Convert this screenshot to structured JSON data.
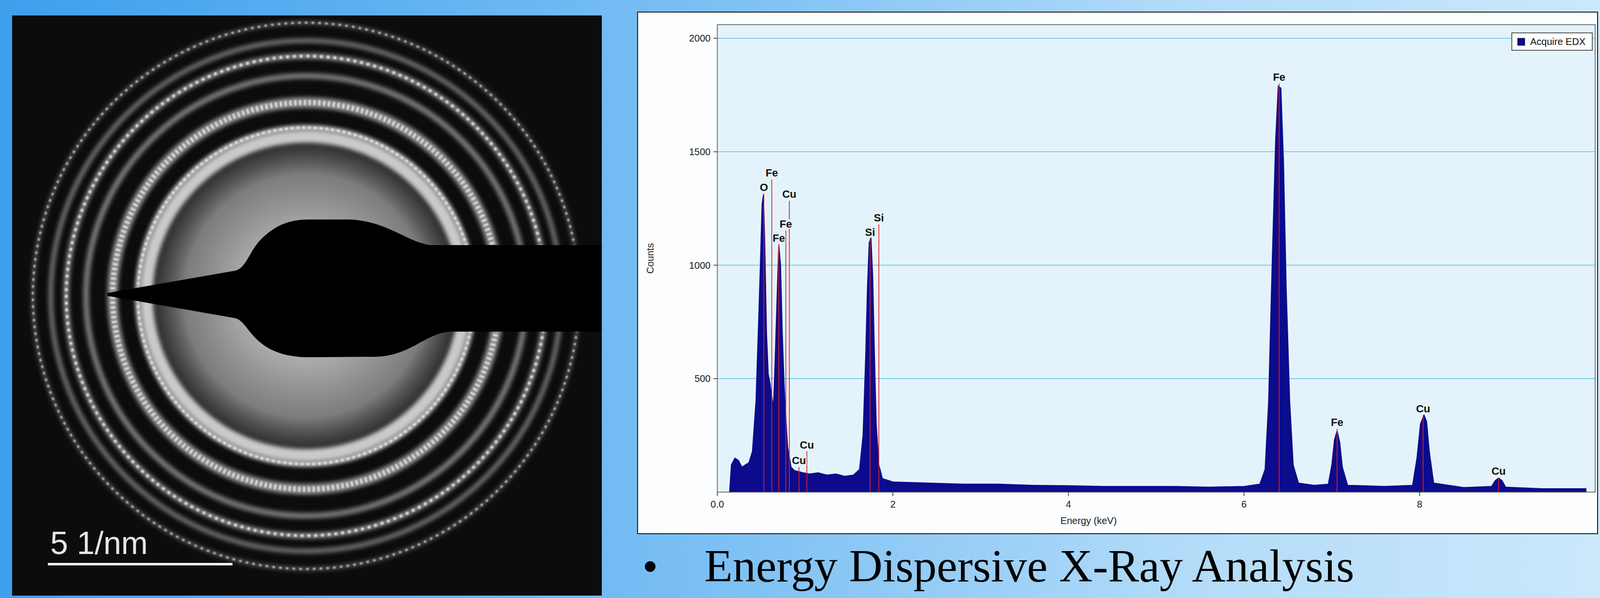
{
  "chart_data": {
    "type": "area",
    "xlabel": "Energy (keV)",
    "ylabel": "Counts",
    "series": [
      {
        "name": "Acquire EDX",
        "color": "#0b0b8c",
        "x": [
          0.14,
          0.16,
          0.2,
          0.24,
          0.28,
          0.32,
          0.36,
          0.4,
          0.44,
          0.47,
          0.49,
          0.51,
          0.525,
          0.54,
          0.56,
          0.58,
          0.6,
          0.62,
          0.64,
          0.66,
          0.68,
          0.7,
          0.72,
          0.74,
          0.76,
          0.78,
          0.8,
          0.84,
          0.88,
          0.93,
          0.98,
          1.05,
          1.15,
          1.25,
          1.35,
          1.45,
          1.55,
          1.62,
          1.66,
          1.69,
          1.71,
          1.73,
          1.75,
          1.77,
          1.79,
          1.81,
          1.84,
          1.88,
          2.0,
          2.4,
          2.8,
          3.2,
          3.6,
          4.0,
          4.4,
          4.8,
          5.2,
          5.6,
          6.0,
          6.18,
          6.24,
          6.28,
          6.32,
          6.36,
          6.39,
          6.42,
          6.45,
          6.48,
          6.52,
          6.56,
          6.62,
          6.8,
          6.96,
          7.0,
          7.03,
          7.06,
          7.09,
          7.12,
          7.18,
          7.6,
          7.92,
          7.97,
          8.01,
          8.05,
          8.08,
          8.11,
          8.16,
          8.5,
          8.82,
          8.86,
          8.9,
          8.94,
          8.98,
          9.4,
          9.9
        ],
        "values": [
          0,
          120,
          150,
          140,
          110,
          120,
          130,
          180,
          400,
          750,
          1000,
          1270,
          1310,
          1100,
          700,
          520,
          480,
          420,
          380,
          600,
          850,
          1090,
          1000,
          700,
          480,
          330,
          200,
          110,
          95,
          90,
          85,
          80,
          85,
          75,
          80,
          70,
          75,
          100,
          250,
          600,
          900,
          1100,
          1120,
          950,
          600,
          300,
          120,
          60,
          45,
          40,
          35,
          35,
          30,
          28,
          25,
          25,
          25,
          22,
          25,
          35,
          100,
          400,
          1000,
          1550,
          1790,
          1780,
          1450,
          900,
          400,
          120,
          40,
          30,
          35,
          120,
          230,
          270,
          220,
          110,
          30,
          25,
          30,
          150,
          300,
          340,
          310,
          180,
          40,
          20,
          25,
          50,
          62,
          50,
          22,
          15,
          15
        ]
      }
    ],
    "xlim": [
      0,
      10
    ],
    "ylim": [
      0,
      2060
    ],
    "xticks": [
      {
        "value": 0,
        "label": "0.0"
      },
      2,
      4,
      6,
      8
    ],
    "yticks": [
      500,
      1000,
      1500,
      2000
    ],
    "grid": true,
    "legend": "top-right",
    "annotations": [
      {
        "label": "O",
        "x": 0.53,
        "y": 1315
      },
      {
        "label": "Fe",
        "x": 0.62,
        "y": 1378
      },
      {
        "label": "Fe",
        "x": 0.7,
        "y": 1090
      },
      {
        "label": "Fe",
        "x": 0.78,
        "y": 1153
      },
      {
        "label": "Cu",
        "x": 0.82,
        "y": 1284
      },
      {
        "label": "Cu",
        "x": 0.93,
        "y": 110
      },
      {
        "label": "Cu",
        "x": 1.02,
        "y": 180
      },
      {
        "label": "Si",
        "x": 1.74,
        "y": 1117
      },
      {
        "label": "Si",
        "x": 1.84,
        "y": 1180
      },
      {
        "label": "Fe",
        "x": 6.4,
        "y": 1800
      },
      {
        "label": "Fe",
        "x": 7.06,
        "y": 279
      },
      {
        "label": "Cu",
        "x": 8.04,
        "y": 338
      },
      {
        "label": "Cu",
        "x": 8.9,
        "y": 63
      }
    ]
  },
  "image": {
    "scale_bar": "5 1/nm"
  },
  "caption": "Energy Dispersive X-Ray Analysis"
}
